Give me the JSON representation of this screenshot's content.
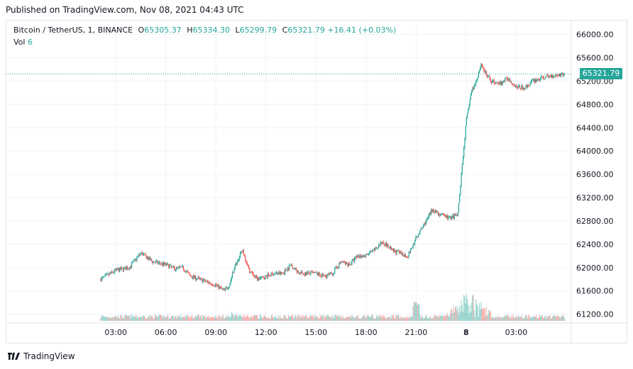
{
  "published": "Published on TradingView.com, Nov 08, 2021 04:43 UTC",
  "legend": {
    "symbol": "Bitcoin / TetherUS, 1, BINANCE",
    "open_label": "O",
    "open": "65305.37",
    "high_label": "H",
    "high": "65334.30",
    "low_label": "L",
    "low": "65299.79",
    "close_label": "C",
    "close": "65321.79",
    "change": "+16.41 (+0.03%)",
    "volume_label": "Vol",
    "volume": "6"
  },
  "last_price_tag": "65321.79",
  "footer": {
    "brand": "TradingView",
    "logo_icon": "tradingview-logo-icon"
  },
  "colors": {
    "up": "#26a69a",
    "down": "#ef5350",
    "volume_up": "#26a69a",
    "volume_down": "#ef5350",
    "grid": "#f0f3fa"
  },
  "chart_data": {
    "type": "candlestick",
    "title": "",
    "y_axis": {
      "position": "right",
      "range": [
        61050,
        66250
      ],
      "ticks": [
        "66000.00",
        "65600.00",
        "65200.00",
        "64800.00",
        "64400.00",
        "64000.00",
        "63600.00",
        "63200.00",
        "62800.00",
        "62400.00",
        "62000.00",
        "61600.00",
        "61200.00"
      ]
    },
    "x_axis": {
      "range_hours": [
        -3.6,
        30.3
      ],
      "ticks": [
        {
          "label": "03:00",
          "h": 3
        },
        {
          "label": "06:00",
          "h": 6
        },
        {
          "label": "09:00",
          "h": 9
        },
        {
          "label": "12:00",
          "h": 12
        },
        {
          "label": "15:00",
          "h": 15
        },
        {
          "label": "18:00",
          "h": 18
        },
        {
          "label": "21:00",
          "h": 21
        },
        {
          "label": "8",
          "h": 24,
          "bold": true
        },
        {
          "label": "03:00",
          "h": 27
        }
      ]
    },
    "last_price": 65321.79,
    "grid": true,
    "price_path_hours": [
      2.1,
      3,
      3.8,
      4.5,
      5.2,
      6,
      6.5,
      7,
      7.5,
      8,
      8.5,
      9,
      9.5,
      9.8,
      10.1,
      10.6,
      11,
      11.5,
      12,
      12.5,
      13,
      13.5,
      14,
      14.5,
      15,
      15.5,
      16,
      16.5,
      17,
      17.5,
      18,
      18.5,
      19,
      19.5,
      20,
      20.5,
      21,
      21.5,
      22,
      22.5,
      23,
      23.5,
      24,
      24.3,
      24.6,
      24.9,
      25.2,
      25.5,
      26,
      26.5,
      27,
      27.5,
      28,
      28.5,
      29,
      29.3,
      29.9
    ],
    "price_path_values": [
      61800,
      61950,
      62000,
      62250,
      62100,
      62050,
      61980,
      62000,
      61850,
      61800,
      61750,
      61700,
      61600,
      61700,
      62000,
      62300,
      61950,
      61800,
      61850,
      61900,
      61900,
      62050,
      61900,
      61900,
      61900,
      61850,
      61900,
      62100,
      62050,
      62200,
      62200,
      62300,
      62450,
      62300,
      62250,
      62200,
      62500,
      62750,
      63000,
      62900,
      62850,
      62900,
      64500,
      65000,
      65200,
      65500,
      65300,
      65200,
      65150,
      65250,
      65100,
      65080,
      65200,
      65250,
      65280,
      65300,
      65321.79
    ],
    "volume_note": "volume histogram along bottom, peaks near 24.2h"
  }
}
